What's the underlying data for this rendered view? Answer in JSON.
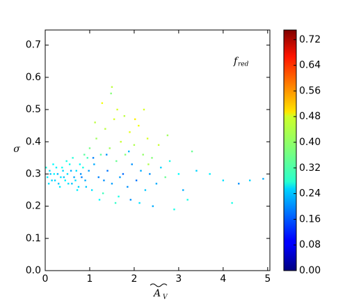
{
  "chart_data": {
    "type": "scatter",
    "xlabel": {
      "base": "A",
      "sub": "V"
    },
    "ylabel": "σ",
    "annotation": {
      "base": "f",
      "sub": "red"
    },
    "xlim": [
      0,
      5.05
    ],
    "ylim": [
      0,
      0.747
    ],
    "xticks": [
      0,
      1,
      2,
      3,
      4,
      5
    ],
    "yticks": [
      {
        "value": 0,
        "label": "0.0"
      },
      {
        "value": 0.1,
        "label": "0.1"
      },
      {
        "value": 0.2,
        "label": "0.2"
      },
      {
        "value": 0.3,
        "label": "0.3"
      },
      {
        "value": 0.4,
        "label": "0.4"
      },
      {
        "value": 0.5,
        "label": "0.5"
      },
      {
        "value": 0.6,
        "label": "0.6"
      },
      {
        "value": 0.7,
        "label": "0.7"
      }
    ],
    "clim": [
      0,
      0.75
    ],
    "colormap": "jet",
    "cticks": [
      {
        "value": 0,
        "label": "0.00"
      },
      {
        "value": 0.08,
        "label": "0.08"
      },
      {
        "value": 0.16,
        "label": "0.16"
      },
      {
        "value": 0.24,
        "label": "0.24"
      },
      {
        "value": 0.32,
        "label": "0.32"
      },
      {
        "value": 0.4,
        "label": "0.40"
      },
      {
        "value": 0.48,
        "label": "0.48"
      },
      {
        "value": 0.56,
        "label": "0.56"
      },
      {
        "value": 0.64,
        "label": "0.64"
      },
      {
        "value": 0.72,
        "label": "0.72"
      }
    ],
    "x": [
      0.05,
      0.1,
      0.15,
      0.2,
      0.25,
      0.3,
      0.35,
      0.4,
      0.45,
      0.5,
      0.55,
      0.6,
      0.65,
      0.7,
      0.75,
      0.8,
      0.85,
      0.9,
      0.95,
      0.02,
      0.08,
      0.12,
      0.18,
      0.22,
      0.28,
      0.33,
      0.38,
      0.42,
      0.48,
      0.52,
      0.58,
      0.62,
      0.68,
      0.72,
      0.78,
      0.82,
      0.88,
      0.92,
      0.98,
      1.0,
      1.05,
      1.1,
      1.15,
      1.2,
      1.25,
      1.3,
      1.35,
      1.4,
      1.45,
      1.5,
      1.55,
      1.6,
      1.65,
      1.7,
      1.75,
      1.8,
      1.85,
      1.9,
      1.95,
      2.0,
      2.05,
      2.1,
      2.15,
      2.2,
      2.25,
      2.3,
      2.35,
      2.4,
      2.5,
      2.55,
      2.6,
      2.7,
      2.8,
      1.12,
      1.28,
      1.48,
      1.62,
      1.78,
      2.02,
      2.22,
      1.22,
      1.58,
      1.92,
      2.12,
      2.42,
      1.38,
      1.68,
      1.88,
      2.32,
      1.08,
      1.32,
      3.0,
      3.1,
      3.3,
      3.2,
      3.4,
      3.7,
      4.0,
      4.2,
      4.35,
      4.6,
      4.9,
      2.9,
      2.75,
      1.5
    ],
    "values": [
      0.29,
      0.31,
      0.28,
      0.3,
      0.32,
      0.27,
      0.29,
      0.31,
      0.28,
      0.3,
      0.33,
      0.27,
      0.29,
      0.31,
      0.26,
      0.3,
      0.32,
      0.28,
      0.35,
      0.32,
      0.27,
      0.3,
      0.33,
      0.28,
      0.3,
      0.26,
      0.32,
      0.29,
      0.34,
      0.27,
      0.31,
      0.35,
      0.28,
      0.25,
      0.33,
      0.29,
      0.36,
      0.26,
      0.31,
      0.38,
      0.25,
      0.33,
      0.41,
      0.29,
      0.36,
      0.24,
      0.44,
      0.31,
      0.38,
      0.27,
      0.47,
      0.34,
      0.23,
      0.4,
      0.3,
      0.36,
      0.26,
      0.43,
      0.33,
      0.39,
      0.28,
      0.45,
      0.31,
      0.36,
      0.25,
      0.41,
      0.3,
      0.35,
      0.27,
      0.39,
      0.32,
      0.29,
      0.34,
      0.46,
      0.52,
      0.55,
      0.5,
      0.48,
      0.47,
      0.5,
      0.22,
      0.21,
      0.22,
      0.21,
      0.2,
      0.36,
      0.29,
      0.37,
      0.33,
      0.35,
      0.28,
      0.3,
      0.25,
      0.37,
      0.22,
      0.31,
      0.3,
      0.28,
      0.21,
      0.27,
      0.28,
      0.285,
      0.19,
      0.42,
      0.57
    ],
    "color_values": [
      0.27,
      0.26,
      0.25,
      0.28,
      0.27,
      0.24,
      0.26,
      0.25,
      0.27,
      0.26,
      0.29,
      0.24,
      0.22,
      0.26,
      0.25,
      0.2,
      0.3,
      0.22,
      0.33,
      0.3,
      0.26,
      0.24,
      0.28,
      0.25,
      0.23,
      0.27,
      0.29,
      0.24,
      0.3,
      0.26,
      0.22,
      0.31,
      0.26,
      0.27,
      0.28,
      0.19,
      0.35,
      0.24,
      0.21,
      0.37,
      0.26,
      0.22,
      0.4,
      0.19,
      0.35,
      0.33,
      0.42,
      0.18,
      0.4,
      0.21,
      0.44,
      0.36,
      0.3,
      0.43,
      0.17,
      0.38,
      0.2,
      0.45,
      0.2,
      0.41,
      0.18,
      0.46,
      0.22,
      0.39,
      0.24,
      0.44,
      0.2,
      0.38,
      0.22,
      0.43,
      0.25,
      0.36,
      0.3,
      0.42,
      0.46,
      0.38,
      0.44,
      0.42,
      0.48,
      0.44,
      0.28,
      0.32,
      0.2,
      0.26,
      0.22,
      0.2,
      0.21,
      0.23,
      0.41,
      0.19,
      0.2,
      0.28,
      0.22,
      0.36,
      0.3,
      0.25,
      0.27,
      0.26,
      0.3,
      0.2,
      0.25,
      0.22,
      0.3,
      0.4,
      0.42
    ]
  }
}
